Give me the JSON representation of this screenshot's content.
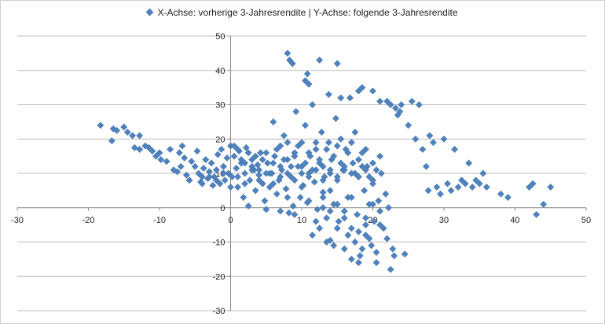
{
  "chart_data": {
    "type": "scatter",
    "legend": "X-Achse: vorherige 3-Jahresrendite | Y-Achse: folgende 3-Jahresrendite",
    "legend_position": "top",
    "marker_color": "#4f81bd",
    "xlim": [
      -30,
      50
    ],
    "ylim": [
      -30,
      50
    ],
    "x_ticks": [
      -30,
      -20,
      -10,
      0,
      10,
      20,
      30,
      40,
      50
    ],
    "y_ticks": [
      -30,
      -20,
      -10,
      0,
      10,
      20,
      30,
      40,
      50
    ],
    "horizontal_grid": true,
    "points": [
      [
        -18.3,
        24
      ],
      [
        -16.5,
        23
      ],
      [
        -16.7,
        19.5
      ],
      [
        -16,
        22.5
      ],
      [
        -15,
        23.5
      ],
      [
        -14.5,
        22
      ],
      [
        -13.8,
        21
      ],
      [
        -12.8,
        21
      ],
      [
        -13.5,
        17.5
      ],
      [
        -12.8,
        17
      ],
      [
        -12,
        18
      ],
      [
        -11,
        16.5
      ],
      [
        -11.5,
        17.5
      ],
      [
        -10.5,
        15
      ],
      [
        -10,
        16
      ],
      [
        -9.8,
        14
      ],
      [
        -9,
        13.5
      ],
      [
        -8.5,
        17
      ],
      [
        -8,
        11
      ],
      [
        -7.5,
        10.5
      ],
      [
        -7,
        12
      ],
      [
        -7.2,
        16
      ],
      [
        -6.8,
        18
      ],
      [
        -6.5,
        14.5
      ],
      [
        -6.2,
        9.5
      ],
      [
        -5.8,
        8
      ],
      [
        -5.5,
        13.5
      ],
      [
        -5,
        12
      ],
      [
        -4.7,
        16.5
      ],
      [
        -4.5,
        10
      ],
      [
        -4.2,
        7.5
      ],
      [
        -4,
        9
      ],
      [
        -3.8,
        11.5
      ],
      [
        -3.5,
        14
      ],
      [
        -3.2,
        8.5
      ],
      [
        -3,
        10.5
      ],
      [
        -2.7,
        13
      ],
      [
        -2.5,
        6.5
      ],
      [
        -2.3,
        9
      ],
      [
        -2,
        11
      ],
      [
        -1.8,
        15.5
      ],
      [
        -1.5,
        7
      ],
      [
        -1.3,
        17
      ],
      [
        -1,
        12
      ],
      [
        -0.8,
        8
      ],
      [
        -0.5,
        14.5
      ],
      [
        -0.3,
        10
      ],
      [
        0,
        18
      ],
      [
        0.2,
        9
      ],
      [
        0.5,
        15
      ],
      [
        0.8,
        11.5
      ],
      [
        1,
        6
      ],
      [
        1.2,
        16.5
      ],
      [
        1.5,
        13
      ],
      [
        1.8,
        3
      ],
      [
        2,
        10
      ],
      [
        2.2,
        17.5
      ],
      [
        2.5,
        0.5
      ],
      [
        2.7,
        8
      ],
      [
        3,
        14
      ],
      [
        3.3,
        11
      ],
      [
        3.5,
        5
      ],
      [
        3.8,
        12.5
      ],
      [
        4,
        9.5
      ],
      [
        4.2,
        16
      ],
      [
        4.5,
        7
      ],
      [
        4.8,
        2
      ],
      [
        5,
        -0.5
      ],
      [
        5.2,
        13
      ],
      [
        5.5,
        6
      ],
      [
        5.8,
        10
      ],
      [
        6,
        25
      ],
      [
        6.2,
        15
      ],
      [
        6.5,
        4
      ],
      [
        6.8,
        8
      ],
      [
        7,
        18
      ],
      [
        7.2,
        11
      ],
      [
        7.5,
        21
      ],
      [
        7.8,
        5.5
      ],
      [
        8,
        14
      ],
      [
        8.2,
        -1.5
      ],
      [
        8.5,
        9
      ],
      [
        8.8,
        0.5
      ],
      [
        9,
        16
      ],
      [
        9.2,
        28
      ],
      [
        9.5,
        12
      ],
      [
        9.8,
        3
      ],
      [
        10,
        19
      ],
      [
        10.2,
        6.5
      ],
      [
        10.5,
        24
      ],
      [
        10.8,
        1.5
      ],
      [
        11,
        10
      ],
      [
        11.2,
        15
      ],
      [
        11.5,
        30
      ],
      [
        11.8,
        7.5
      ],
      [
        12,
        17
      ],
      [
        12.2,
        -0.5
      ],
      [
        12.5,
        13
      ],
      [
        12.8,
        22
      ],
      [
        13,
        4.5
      ],
      [
        13.2,
        9
      ],
      [
        13.5,
        -3
      ],
      [
        13.8,
        19
      ],
      [
        14,
        -9.5
      ],
      [
        14.2,
        14
      ],
      [
        14.5,
        1
      ],
      [
        14.8,
        26
      ],
      [
        15,
        8
      ],
      [
        15.2,
        -4
      ],
      [
        15.5,
        20
      ],
      [
        15.8,
        11
      ],
      [
        16,
        -12
      ],
      [
        16.2,
        17
      ],
      [
        16.5,
        3
      ],
      [
        16.8,
        32
      ],
      [
        17,
        -6
      ],
      [
        17.2,
        13
      ],
      [
        17.5,
        22
      ],
      [
        17.8,
        -2
      ],
      [
        18,
        9
      ],
      [
        18.2,
        -14
      ],
      [
        18.5,
        16
      ],
      [
        18.8,
        5
      ],
      [
        19,
        -8
      ],
      [
        19.2,
        12
      ],
      [
        19.5,
        1
      ],
      [
        19.8,
        -11
      ],
      [
        20,
        8
      ],
      [
        20.2,
        -4
      ],
      [
        20.5,
        -16
      ],
      [
        20.8,
        2
      ],
      [
        21,
        -1
      ],
      [
        21.2,
        10
      ],
      [
        21.5,
        -6
      ],
      [
        21.8,
        4
      ],
      [
        22,
        -9
      ],
      [
        22.2,
        0
      ],
      [
        22.5,
        -18
      ],
      [
        22.8,
        -12
      ],
      [
        23,
        -14
      ],
      [
        23.2,
        29
      ],
      [
        23.5,
        27
      ],
      [
        23.8,
        28
      ],
      [
        24,
        30
      ],
      [
        24.5,
        -13.5
      ],
      [
        25,
        24
      ],
      [
        25.5,
        31
      ],
      [
        26,
        20
      ],
      [
        26.5,
        30
      ],
      [
        27,
        17
      ],
      [
        27.5,
        12
      ],
      [
        27.8,
        5
      ],
      [
        28,
        21
      ],
      [
        28.5,
        19
      ],
      [
        29,
        6
      ],
      [
        29.5,
        4
      ],
      [
        30,
        20
      ],
      [
        30.5,
        7
      ],
      [
        31,
        5
      ],
      [
        31.5,
        17
      ],
      [
        32,
        6
      ],
      [
        32.5,
        8
      ],
      [
        33,
        7
      ],
      [
        33.5,
        13
      ],
      [
        34,
        6
      ],
      [
        34.5,
        8
      ],
      [
        35,
        7
      ],
      [
        35.5,
        10
      ],
      [
        36,
        6
      ],
      [
        38,
        4
      ],
      [
        39,
        3
      ],
      [
        42,
        6
      ],
      [
        42.5,
        7
      ],
      [
        43,
        -2
      ],
      [
        44,
        1
      ],
      [
        45,
        6
      ],
      [
        8,
        45
      ],
      [
        8.3,
        43
      ],
      [
        8.7,
        42
      ],
      [
        10.5,
        37
      ],
      [
        10.8,
        39
      ],
      [
        11,
        36
      ],
      [
        12.5,
        43
      ],
      [
        13.8,
        33
      ],
      [
        15,
        42
      ],
      [
        15.5,
        32
      ],
      [
        18,
        34
      ],
      [
        18.5,
        35
      ],
      [
        20,
        34
      ],
      [
        21,
        31
      ],
      [
        22,
        31
      ],
      [
        22.5,
        30
      ],
      [
        0.5,
        18
      ],
      [
        1,
        17
      ],
      [
        1.5,
        14
      ],
      [
        2,
        13
      ],
      [
        2.5,
        16
      ],
      [
        3,
        12
      ],
      [
        3.5,
        15
      ],
      [
        4,
        11
      ],
      [
        4.5,
        14
      ],
      [
        5,
        16
      ],
      [
        5.5,
        10
      ],
      [
        6,
        13
      ],
      [
        6.5,
        17
      ],
      [
        7,
        9
      ],
      [
        7.5,
        14
      ],
      [
        8,
        19
      ],
      [
        8.5,
        12
      ],
      [
        9,
        15
      ],
      [
        9.5,
        18
      ],
      [
        10,
        10
      ],
      [
        10.5,
        13
      ],
      [
        11,
        16
      ],
      [
        11.5,
        11
      ],
      [
        12,
        19
      ],
      [
        12.5,
        14
      ],
      [
        13,
        12
      ],
      [
        13.5,
        17
      ],
      [
        14,
        10
      ],
      [
        14.5,
        15
      ],
      [
        15,
        18
      ],
      [
        15.5,
        13
      ],
      [
        16,
        11
      ],
      [
        16.5,
        16
      ],
      [
        17,
        19
      ],
      [
        17.5,
        10
      ],
      [
        18,
        14
      ],
      [
        18.5,
        12
      ],
      [
        19,
        17
      ],
      [
        19.5,
        9
      ],
      [
        20,
        13
      ],
      [
        20.5,
        11
      ],
      [
        21,
        15
      ],
      [
        7,
        -1
      ],
      [
        8,
        3
      ],
      [
        9,
        -2
      ],
      [
        10,
        6
      ],
      [
        11,
        2
      ],
      [
        12,
        -4
      ],
      [
        13,
        0
      ],
      [
        14,
        5
      ],
      [
        15,
        -6
      ],
      [
        16,
        -1
      ],
      [
        17,
        3
      ],
      [
        18,
        -7
      ],
      [
        19,
        -3
      ],
      [
        20,
        1
      ],
      [
        21,
        -5
      ],
      [
        17.5,
        -10
      ],
      [
        18.5,
        -12
      ],
      [
        19.5,
        -9
      ],
      [
        20.5,
        -13
      ],
      [
        16.5,
        -8
      ],
      [
        17,
        -15
      ],
      [
        18,
        -16
      ],
      [
        19,
        -5
      ],
      [
        16,
        -3
      ],
      [
        15,
        1
      ],
      [
        14,
        -1
      ],
      [
        13,
        3
      ],
      [
        12.5,
        -6
      ],
      [
        11.5,
        -8
      ],
      [
        13.5,
        -10
      ],
      [
        14.5,
        -11
      ],
      [
        -4,
        7
      ],
      [
        -3,
        9
      ],
      [
        -2,
        8
      ],
      [
        -1,
        10
      ],
      [
        0,
        6
      ],
      [
        1,
        9
      ],
      [
        2,
        7
      ],
      [
        3,
        11
      ],
      [
        4,
        8
      ],
      [
        5,
        10
      ],
      [
        6,
        7
      ],
      [
        7,
        12
      ],
      [
        8,
        10
      ],
      [
        9,
        8
      ],
      [
        10,
        12
      ],
      [
        11,
        9
      ],
      [
        12,
        11
      ],
      [
        13,
        8
      ],
      [
        14,
        11
      ],
      [
        15,
        9
      ],
      [
        16,
        12
      ],
      [
        17,
        10
      ],
      [
        18,
        9
      ],
      [
        19,
        11
      ],
      [
        20,
        7
      ]
    ]
  }
}
